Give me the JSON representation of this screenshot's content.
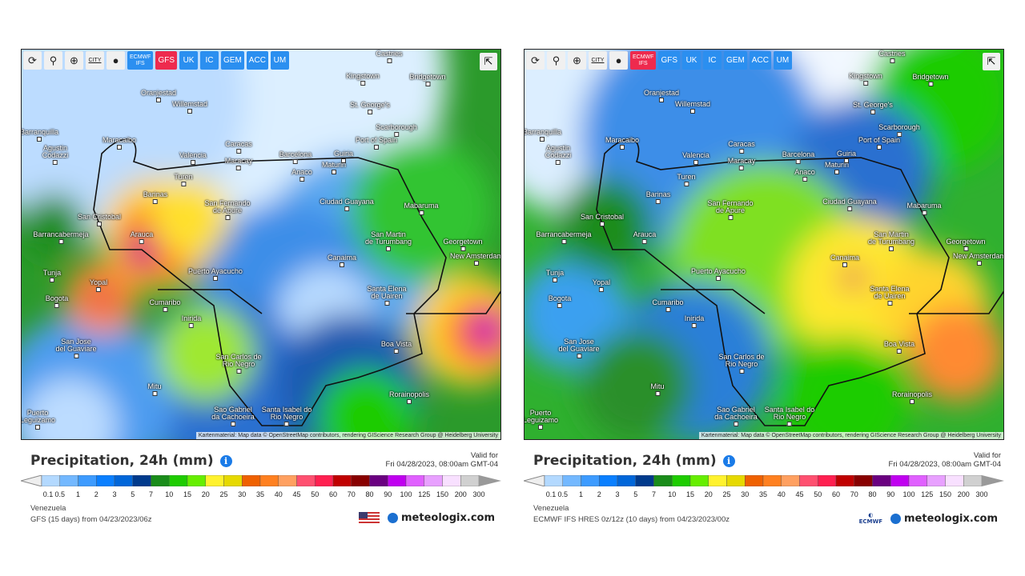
{
  "toolbar": {
    "icons": [
      "refresh-icon",
      "location-pin-icon",
      "zoom-icon",
      "city-toggle-icon",
      "dot-icon"
    ],
    "city_label": "CITY",
    "models": [
      "ECMWF IFS",
      "GFS",
      "UK",
      "IC",
      "GEM",
      "ACC",
      "UM"
    ]
  },
  "cities": [
    "Castries",
    "Kingstown",
    "Bridgetown",
    "Oranjestad",
    "Willemstad",
    "St. George's",
    "Scarborough",
    "Barranquilla",
    "Port of Spain",
    "Maracaibo",
    "Agustin Codazzi",
    "Caracas",
    "Valencia",
    "Maracay",
    "Barcelona",
    "Guiria",
    "Maturin",
    "Anaco",
    "Turen",
    "Barinas",
    "Ciudad Guayana",
    "Mabaruma",
    "San Fernando de Apure",
    "San Cristobal",
    "Barrancabermeja",
    "Arauca",
    "San Martin de Turumbang",
    "Georgetown",
    "Canaima",
    "New Amsterdam",
    "Puerto Ayacucho",
    "Tunja",
    "Yopal",
    "Bogota",
    "Cumaribo",
    "Santa Elena de Uairen",
    "Inirida",
    "Boa Vista",
    "San Jose del Guaviare",
    "San Carlos de Rio Negro",
    "Mitu",
    "Rorainopolis",
    "Sao Gabriel da Cachoeira",
    "Santa Isabel do Rio Negro",
    "Puerto Leguizamo"
  ],
  "attribution": "Kartenmaterial: Map data © OpenStreetMap contributors, rendering GIScience Research Group @ Heidelberg University",
  "legend": {
    "labels": [
      "0.1",
      "0.5",
      "1",
      "2",
      "3",
      "5",
      "7",
      "10",
      "15",
      "20",
      "25",
      "30",
      "35",
      "40",
      "45",
      "50",
      "60",
      "70",
      "80",
      "90",
      "100",
      "125",
      "150",
      "200",
      "300"
    ],
    "colors": [
      "#b3d9ff",
      "#73b8ff",
      "#3d9bff",
      "#0a7fff",
      "#0066d9",
      "#003a8c",
      "#1a8c1a",
      "#1ecc00",
      "#66ee00",
      "#fff22e",
      "#e6d900",
      "#ef6100",
      "#ff8020",
      "#ffa060",
      "#ff5070",
      "#ff2050",
      "#c00000",
      "#880000",
      "#6a0080",
      "#c000f0",
      "#e060ff",
      "#e8a0ff",
      "#f8e0ff",
      "#d0d0d0"
    ]
  },
  "panels": {
    "left": {
      "active_model": "GFS",
      "title": "Precipitation, 24h (mm)",
      "valid_label": "Valid for",
      "valid_time": "Fri 04/28/2023, 08:00am GMT-04",
      "region": "Venezuela",
      "model_info": "GFS (15 days) from 04/23/2023/06z",
      "brand": "meteologix.com"
    },
    "right": {
      "active_model": "ECMWF IFS",
      "title": "Precipitation, 24h (mm)",
      "valid_label": "Valid for",
      "valid_time": "Fri 04/28/2023, 08:00am GMT-04",
      "region": "Venezuela",
      "model_info": "ECMWF IFS HRES 0z/12z (10 days) from 04/23/2023/00z",
      "brand": "meteologix.com",
      "ecmwf_logo": "ECMWF"
    }
  }
}
